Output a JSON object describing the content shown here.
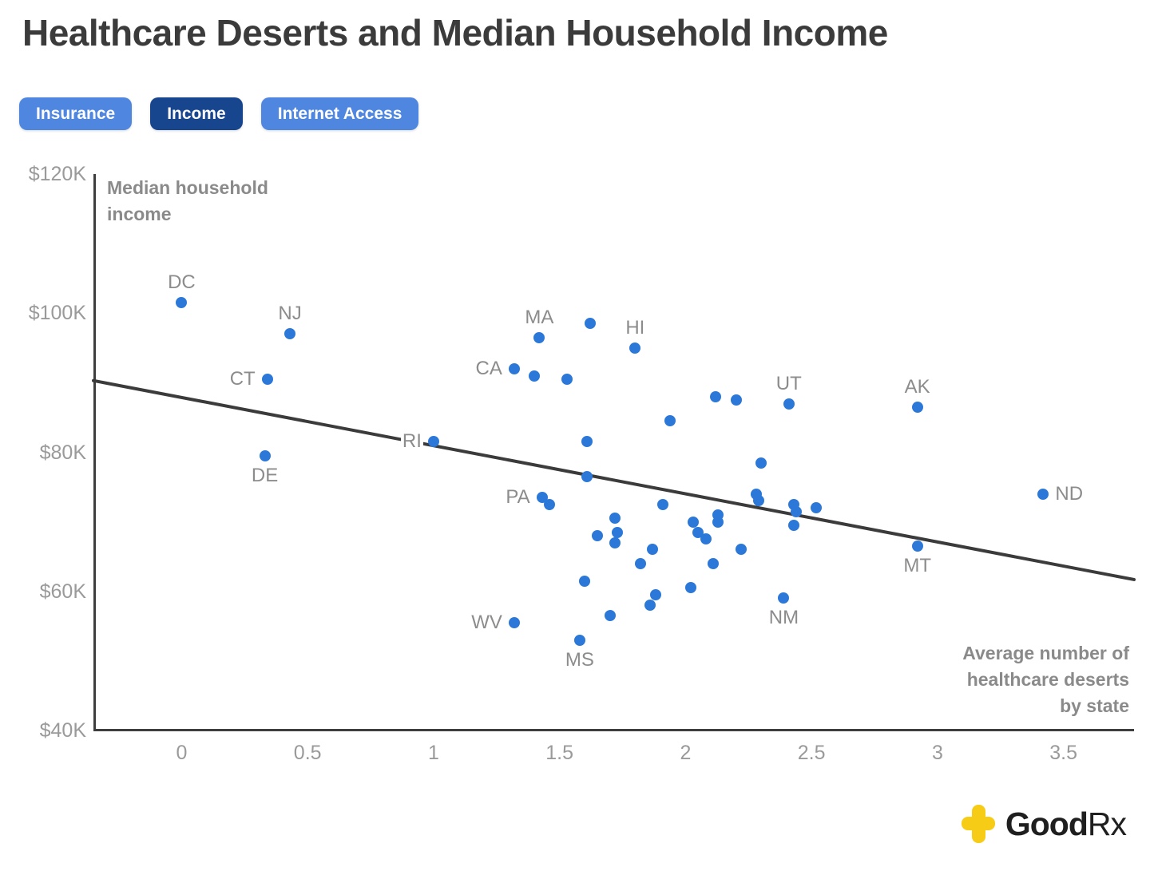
{
  "title": "Healthcare Deserts and Median Household Income",
  "buttons": [
    {
      "label": "Insurance",
      "active": false
    },
    {
      "label": "Income",
      "active": true
    },
    {
      "label": "Internet Access",
      "active": false
    }
  ],
  "colors": {
    "button_blue": "#4f87e0",
    "button_blue_active": "#17468f",
    "point_blue": "#2b78d9",
    "trend_gray": "#3b3b3b",
    "axis_gray": "#3e3e3e",
    "label_gray": "#8c8c8c",
    "tick_gray": "#9a9a9a",
    "logo_yellow": "#f7cc16",
    "logo_black": "#1f1f1f"
  },
  "y_axis": {
    "title": "Median household\nincome",
    "ticks": [
      {
        "value": 120,
        "label": "$120K"
      },
      {
        "value": 100,
        "label": "$100K"
      },
      {
        "value": 80,
        "label": "$80K"
      },
      {
        "value": 60,
        "label": "$60K"
      },
      {
        "value": 40,
        "label": "$40K"
      }
    ]
  },
  "x_axis": {
    "title": "Average number of\nhealthcare deserts\nby state",
    "ticks": [
      {
        "value": 0,
        "label": "0"
      },
      {
        "value": 0.5,
        "label": "0.5"
      },
      {
        "value": 1,
        "label": "1"
      },
      {
        "value": 1.5,
        "label": "1.5"
      },
      {
        "value": 2,
        "label": "2"
      },
      {
        "value": 2.5,
        "label": "2.5"
      },
      {
        "value": 3,
        "label": "3"
      },
      {
        "value": 3.5,
        "label": "3.5"
      }
    ]
  },
  "logo": {
    "text_good": "Good",
    "text_rx": "Rx",
    "icon": "plus-cross-icon"
  },
  "chart_data": {
    "type": "scatter",
    "title": "Healthcare Deserts and Median Household Income",
    "xlabel": "Average number of healthcare deserts by state",
    "ylabel": "Median household income (USD thousands)",
    "xlim": [
      -0.35,
      3.78
    ],
    "ylim": [
      40,
      120
    ],
    "grid": false,
    "trend_line": {
      "x1": -0.35,
      "y1": 90.3,
      "x2": 3.78,
      "y2": 61.7
    },
    "points": [
      {
        "x": 0.0,
        "y": 101.5,
        "label": "DC",
        "label_pos": "above"
      },
      {
        "x": 0.43,
        "y": 97.0,
        "label": "NJ",
        "label_pos": "above"
      },
      {
        "x": 0.34,
        "y": 90.5,
        "label": "CT",
        "label_pos": "left"
      },
      {
        "x": 0.33,
        "y": 79.5,
        "label": "DE",
        "label_pos": "below"
      },
      {
        "x": 1.0,
        "y": 81.5,
        "label": "RI",
        "label_pos": "left"
      },
      {
        "x": 1.32,
        "y": 92.0,
        "label": "CA",
        "label_pos": "left"
      },
      {
        "x": 1.42,
        "y": 96.5,
        "label": "MA",
        "label_pos": "above"
      },
      {
        "x": 1.8,
        "y": 95.0,
        "label": "HI",
        "label_pos": "above"
      },
      {
        "x": 1.43,
        "y": 73.5,
        "label": "PA",
        "label_pos": "left"
      },
      {
        "x": 1.32,
        "y": 55.5,
        "label": "WV",
        "label_pos": "left"
      },
      {
        "x": 1.58,
        "y": 53.0,
        "label": "MS",
        "label_pos": "below"
      },
      {
        "x": 2.41,
        "y": 87.0,
        "label": "UT",
        "label_pos": "above"
      },
      {
        "x": 2.39,
        "y": 59.0,
        "label": "NM",
        "label_pos": "below"
      },
      {
        "x": 2.92,
        "y": 86.5,
        "label": "AK",
        "label_pos": "above"
      },
      {
        "x": 2.92,
        "y": 66.5,
        "label": "MT",
        "label_pos": "below"
      },
      {
        "x": 3.42,
        "y": 74.0,
        "label": "ND",
        "label_pos": "right"
      },
      {
        "x": 1.62,
        "y": 98.5
      },
      {
        "x": 1.4,
        "y": 91.0
      },
      {
        "x": 1.53,
        "y": 90.5
      },
      {
        "x": 2.12,
        "y": 88.0
      },
      {
        "x": 2.2,
        "y": 87.5
      },
      {
        "x": 1.94,
        "y": 84.5
      },
      {
        "x": 1.61,
        "y": 81.5
      },
      {
        "x": 1.61,
        "y": 76.5
      },
      {
        "x": 1.46,
        "y": 72.5
      },
      {
        "x": 1.91,
        "y": 72.5
      },
      {
        "x": 2.3,
        "y": 78.5
      },
      {
        "x": 2.28,
        "y": 74.0
      },
      {
        "x": 2.29,
        "y": 73.0
      },
      {
        "x": 2.43,
        "y": 72.5
      },
      {
        "x": 2.44,
        "y": 71.5
      },
      {
        "x": 2.52,
        "y": 72.0
      },
      {
        "x": 2.43,
        "y": 69.5
      },
      {
        "x": 2.13,
        "y": 71.0
      },
      {
        "x": 2.13,
        "y": 70.0
      },
      {
        "x": 1.72,
        "y": 70.5
      },
      {
        "x": 1.65,
        "y": 68.0
      },
      {
        "x": 1.73,
        "y": 68.5
      },
      {
        "x": 1.72,
        "y": 67.0
      },
      {
        "x": 1.87,
        "y": 66.0
      },
      {
        "x": 2.03,
        "y": 70.0
      },
      {
        "x": 2.05,
        "y": 68.5
      },
      {
        "x": 2.08,
        "y": 67.5
      },
      {
        "x": 2.22,
        "y": 66.0
      },
      {
        "x": 2.11,
        "y": 64.0
      },
      {
        "x": 1.82,
        "y": 64.0
      },
      {
        "x": 1.6,
        "y": 61.5
      },
      {
        "x": 1.88,
        "y": 59.5
      },
      {
        "x": 2.02,
        "y": 60.5
      },
      {
        "x": 1.86,
        "y": 58.0
      },
      {
        "x": 1.7,
        "y": 56.5
      }
    ]
  }
}
